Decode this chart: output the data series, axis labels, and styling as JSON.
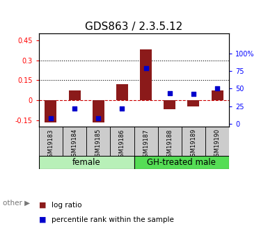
{
  "title": "GDS863 / 2.3.5.12",
  "samples": [
    "GSM19183",
    "GSM19184",
    "GSM19185",
    "GSM19186",
    "GSM19187",
    "GSM19188",
    "GSM19189",
    "GSM19190"
  ],
  "log_ratio": [
    -0.17,
    0.07,
    -0.17,
    0.12,
    0.38,
    -0.07,
    -0.05,
    0.07
  ],
  "percentile_rank": [
    0.08,
    0.22,
    0.08,
    0.22,
    0.79,
    0.43,
    0.42,
    0.5
  ],
  "groups": [
    {
      "label": "female",
      "start": 0,
      "end": 4,
      "color": "#b8f0b8"
    },
    {
      "label": "GH-treated male",
      "start": 4,
      "end": 8,
      "color": "#55dd55"
    }
  ],
  "other_label": "other",
  "ylim_left": [
    -0.2,
    0.5
  ],
  "ylim_right": [
    -0.04,
    1.28
  ],
  "yticks_left": [
    -0.15,
    0,
    0.15,
    0.3,
    0.45
  ],
  "ytick_labels_left": [
    "-0.15",
    "0",
    "0.15",
    "0.3",
    "0.45"
  ],
  "yticks_right": [
    0,
    0.25,
    0.5,
    0.75,
    1.0
  ],
  "ytick_labels_right": [
    "0",
    "25",
    "50",
    "75",
    "100%"
  ],
  "hlines": [
    0.15,
    0.3
  ],
  "bar_color": "#8b1a1a",
  "dot_color": "#0000cc",
  "zero_line_color": "#cc0000",
  "hline_color": "black",
  "bar_width": 0.5,
  "title_fontsize": 11,
  "tick_fontsize": 7,
  "legend_fontsize": 7.5,
  "group_label_fontsize": 8.5,
  "sample_fontsize": 6.0
}
